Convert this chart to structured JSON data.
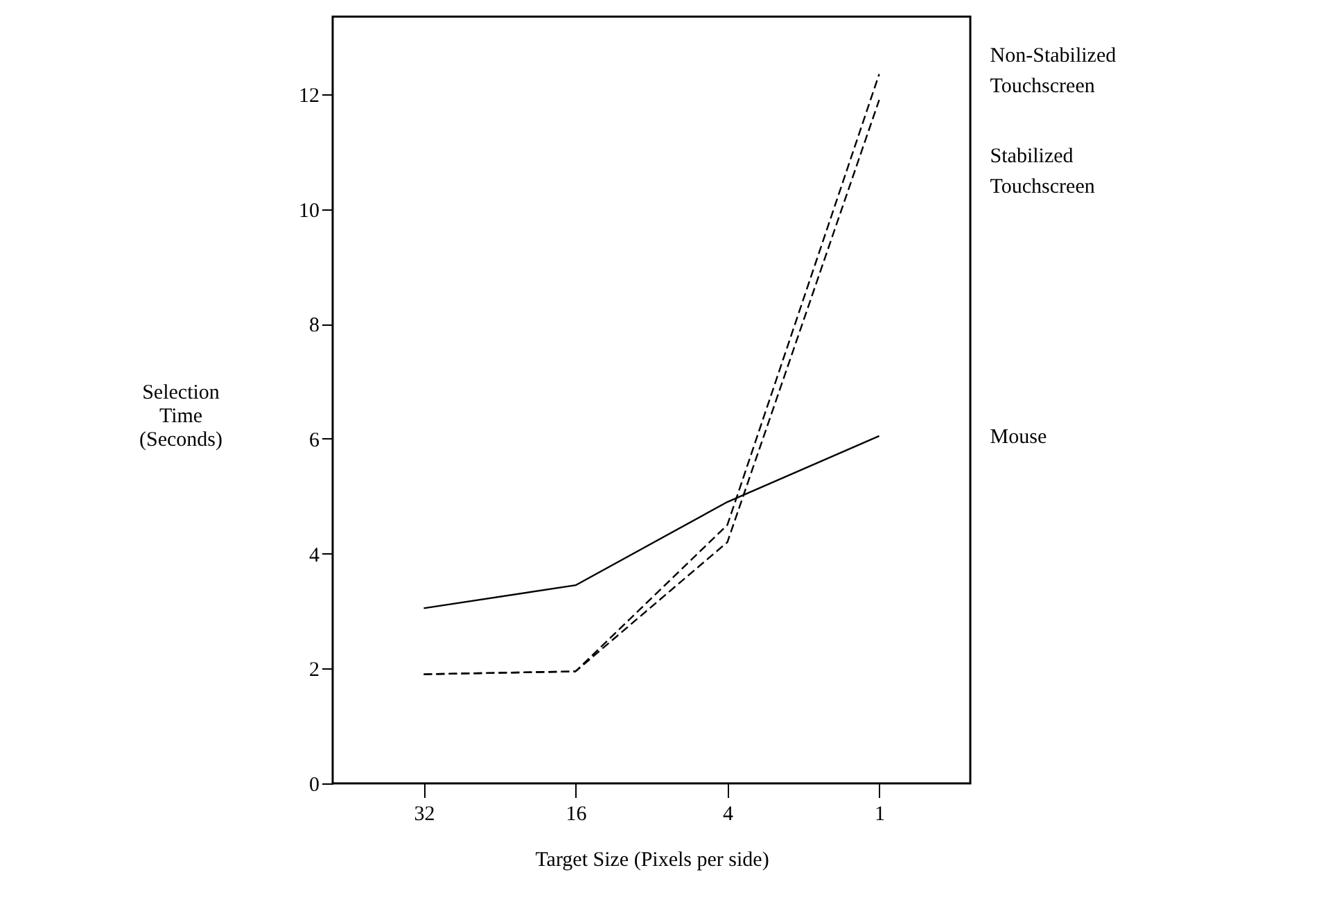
{
  "chart_data": {
    "type": "line",
    "xlabel": "Target Size (Pixels per side)",
    "ylabel": "Selection Time (Seconds)",
    "categories": [
      "32",
      "16",
      "4",
      "1"
    ],
    "series": [
      {
        "name": "Mouse",
        "color": "#000000",
        "line_style": "solid",
        "values": [
          3.05,
          3.45,
          4.9,
          6.05
        ]
      },
      {
        "name": "Non-Stabilized Touchscreen",
        "color": "#000000",
        "line_style": "dashed",
        "values": [
          1.9,
          1.95,
          4.5,
          12.35
        ]
      },
      {
        "name": "Stabilized Touchscreen",
        "color": "#000000",
        "line_style": "dashed",
        "values": [
          1.9,
          1.95,
          4.2,
          11.9
        ]
      }
    ],
    "ylim": [
      0,
      13.35
    ],
    "yticks": [
      0,
      2,
      4,
      6,
      8,
      10,
      12
    ],
    "grid": false,
    "legend": false,
    "marker": "none"
  }
}
